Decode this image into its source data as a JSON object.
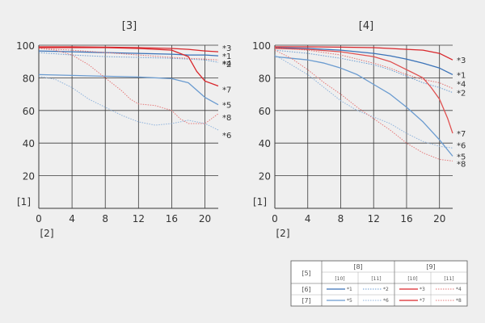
{
  "chart_data": [
    {
      "type": "line",
      "title": "[3]",
      "ylabel": "[1]",
      "xlabel": "[2]",
      "xlim": [
        0,
        21.6
      ],
      "ylim": [
        0,
        100
      ],
      "xticks": [
        0,
        4,
        8,
        12,
        16,
        20
      ],
      "yticks": [
        20,
        40,
        60,
        80,
        100
      ],
      "grid": true,
      "series": [
        {
          "name": "*1",
          "color": "#3a72b8",
          "dash": "solid",
          "x": [
            0,
            4,
            8,
            12,
            16,
            18,
            20,
            21.6
          ],
          "y": [
            96.5,
            96,
            95.5,
            95,
            94.5,
            94,
            94,
            93.5
          ]
        },
        {
          "name": "*2",
          "color": "#6a9bd0",
          "dash": "dotted",
          "x": [
            0,
            4,
            8,
            12,
            16,
            18,
            20,
            21.6
          ],
          "y": [
            95.5,
            94,
            93,
            92.5,
            92,
            91.5,
            91,
            89.5
          ]
        },
        {
          "name": "*3",
          "color": "#d9262b",
          "dash": "solid",
          "x": [
            0,
            4,
            8,
            12,
            16,
            18,
            20,
            21.6
          ],
          "y": [
            99,
            99,
            98.8,
            98.5,
            98,
            97.5,
            96.5,
            96
          ]
        },
        {
          "name": "*4",
          "color": "#e07070",
          "dash": "dotted",
          "x": [
            0,
            4,
            8,
            12,
            16,
            18,
            20,
            21.6
          ],
          "y": [
            98,
            97,
            95.5,
            94,
            92.5,
            92,
            91.5,
            91
          ]
        },
        {
          "name": "*5",
          "color": "#6a9bd0",
          "dash": "solid",
          "x": [
            0,
            4,
            8,
            12,
            16,
            18,
            20,
            21.6
          ],
          "y": [
            82,
            81.5,
            81,
            80.5,
            79.5,
            77,
            68,
            63.5
          ]
        },
        {
          "name": "*6",
          "color": "#8fb3dc",
          "dash": "dotted",
          "x": [
            0,
            2,
            4,
            6,
            8,
            10,
            12,
            14,
            16,
            18,
            20,
            21.6
          ],
          "y": [
            81,
            79,
            74,
            67,
            62,
            57,
            53,
            51,
            52,
            54,
            52,
            48
          ]
        },
        {
          "name": "*7",
          "color": "#d9262b",
          "dash": "solid",
          "x": [
            0,
            4,
            8,
            12,
            16,
            18,
            19,
            20,
            21.6
          ],
          "y": [
            98.5,
            98.5,
            98.5,
            98,
            97,
            93,
            84,
            78,
            75
          ]
        },
        {
          "name": "*8",
          "color": "#e57a7a",
          "dash": "dotted",
          "x": [
            0,
            2,
            4,
            6,
            8,
            10,
            11,
            12,
            14,
            16,
            17,
            18,
            20,
            21.6
          ],
          "y": [
            98,
            97,
            94,
            88,
            80,
            72,
            67,
            64,
            63,
            60,
            55,
            52,
            52,
            58
          ]
        }
      ]
    },
    {
      "type": "line",
      "title": "[4]",
      "ylabel": "[1]",
      "xlabel": "[2]",
      "xlim": [
        0,
        21.6
      ],
      "ylim": [
        0,
        100
      ],
      "xticks": [
        0,
        4,
        8,
        12,
        16,
        20
      ],
      "yticks": [
        20,
        40,
        60,
        80,
        100
      ],
      "grid": true,
      "series": [
        {
          "name": "*1",
          "color": "#3a72b8",
          "dash": "solid",
          "x": [
            0,
            4,
            8,
            12,
            14,
            16,
            18,
            20,
            21.6
          ],
          "y": [
            98.5,
            98,
            97,
            95,
            93.5,
            91.5,
            89,
            86,
            82
          ]
        },
        {
          "name": "*2",
          "color": "#6a9bd0",
          "dash": "dotted",
          "x": [
            0,
            4,
            8,
            12,
            14,
            16,
            18,
            20,
            21.6
          ],
          "y": [
            97,
            95,
            92,
            88,
            85,
            81,
            77,
            74,
            71
          ]
        },
        {
          "name": "*3",
          "color": "#d9262b",
          "dash": "solid",
          "x": [
            0,
            4,
            8,
            12,
            14,
            16,
            18,
            20,
            21.6
          ],
          "y": [
            99,
            99,
            98.8,
            98.5,
            98,
            97.5,
            97,
            95,
            91
          ]
        },
        {
          "name": "*4",
          "color": "#e07070",
          "dash": "dotted",
          "x": [
            0,
            4,
            8,
            12,
            14,
            16,
            18,
            20,
            21.6
          ],
          "y": [
            98.5,
            97,
            94,
            89,
            86,
            82,
            79,
            77,
            73.5
          ]
        },
        {
          "name": "*5",
          "color": "#6a9bd0",
          "dash": "solid",
          "x": [
            0,
            2,
            4,
            6,
            8,
            10,
            12,
            14,
            16,
            18,
            20,
            21.6
          ],
          "y": [
            93,
            92,
            91,
            89,
            86,
            82,
            76,
            70,
            62,
            53,
            42,
            32
          ]
        },
        {
          "name": "*6",
          "color": "#8fb3dc",
          "dash": "dotted",
          "x": [
            0,
            2,
            4,
            6,
            8,
            10,
            12,
            14,
            16,
            18,
            20,
            21.6
          ],
          "y": [
            94,
            88,
            82,
            74,
            66,
            60,
            56,
            52,
            46,
            41,
            38,
            37
          ]
        },
        {
          "name": "*7",
          "color": "#e05050",
          "dash": "solid",
          "x": [
            0,
            4,
            8,
            12,
            14,
            16,
            18,
            19,
            20,
            21,
            21.6
          ],
          "y": [
            98,
            97.5,
            96,
            93,
            90,
            85,
            80,
            74,
            67,
            55,
            46
          ]
        },
        {
          "name": "*8",
          "color": "#e57a7a",
          "dash": "dotted",
          "x": [
            0,
            2,
            4,
            6,
            8,
            10,
            12,
            14,
            16,
            18,
            20,
            21.6
          ],
          "y": [
            97,
            92,
            85,
            77,
            70,
            62,
            55,
            48,
            40,
            34,
            30,
            29
          ]
        }
      ]
    }
  ],
  "legend": {
    "header": [
      "[5]",
      "[8]",
      "[9]"
    ],
    "subheader": [
      "[10]",
      "[11]",
      "[10]",
      "[11]"
    ],
    "rows": [
      {
        "label": "[6]",
        "items": [
          "*1",
          "*2",
          "*3",
          "*4"
        ]
      },
      {
        "label": "[7]",
        "items": [
          "*5",
          "*6",
          "*7",
          "*8"
        ]
      }
    ]
  }
}
